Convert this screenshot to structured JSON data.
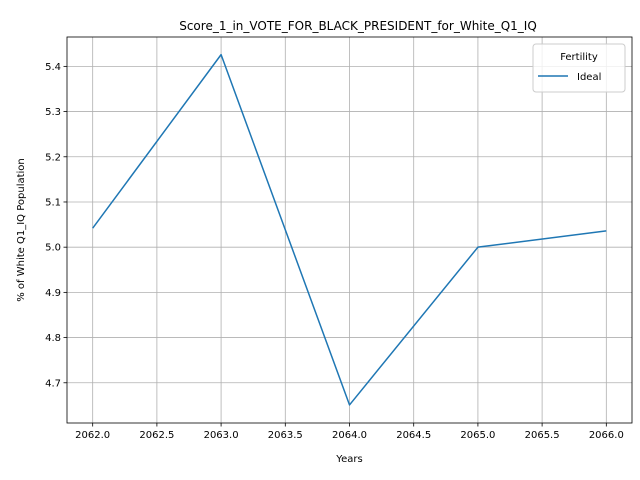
{
  "chart_data": {
    "type": "line",
    "title": "Score_1_in_VOTE_FOR_BLACK_PRESIDENT_for_White_Q1_IQ",
    "xlabel": "Years",
    "ylabel": "% of White Q1_IQ Population",
    "xlim": [
      2061.8,
      2066.2
    ],
    "ylim": [
      4.611,
      5.465
    ],
    "x_ticks": [
      2062.0,
      2062.5,
      2063.0,
      2063.5,
      2064.0,
      2064.5,
      2065.0,
      2065.5,
      2066.0
    ],
    "x_tick_labels": [
      "2062.0",
      "2062.5",
      "2063.0",
      "2063.5",
      "2064.0",
      "2064.5",
      "2065.0",
      "2065.5",
      "2066.0"
    ],
    "y_ticks": [
      4.7,
      4.8,
      4.9,
      5.0,
      5.1,
      5.2,
      5.3,
      5.4
    ],
    "y_tick_labels": [
      "4.7",
      "4.8",
      "4.9",
      "5.0",
      "5.1",
      "5.2",
      "5.3",
      "5.4"
    ],
    "grid": true,
    "legend": {
      "title": "Fertility",
      "placement": "top-right"
    },
    "series": [
      {
        "name": "Ideal",
        "color": "#1f77b4",
        "x": [
          2062,
          2063,
          2064,
          2065,
          2066
        ],
        "y": [
          5.042,
          5.426,
          4.651,
          5.0,
          5.036
        ]
      }
    ]
  }
}
